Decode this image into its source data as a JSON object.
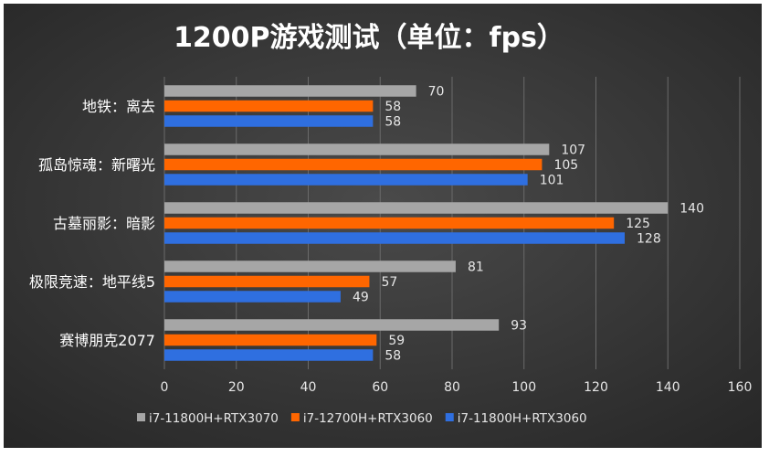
{
  "chart_data": {
    "type": "bar",
    "orientation": "horizontal",
    "title": "1200P游戏测试（单位：fps）",
    "categories": [
      "地铁：离去",
      "孤岛惊魂：新曙光",
      "古墓丽影：暗影",
      "极限竞速：地平线5",
      "赛博朋克2077"
    ],
    "series": [
      {
        "name": "i7-11800H+RTX3070",
        "color": "#a6a6a6",
        "values": [
          70,
          107,
          140,
          81,
          93
        ]
      },
      {
        "name": "i7-12700H+RTX3060",
        "color": "#ff6600",
        "values": [
          58,
          105,
          125,
          57,
          59
        ]
      },
      {
        "name": "i7-11800H+RTX3060",
        "color": "#2f6fe0",
        "values": [
          58,
          101,
          128,
          49,
          58
        ]
      }
    ],
    "xlim": [
      0,
      160
    ],
    "xticks": [
      0,
      20,
      40,
      60,
      80,
      100,
      120,
      140,
      160
    ],
    "grid": true,
    "legend": "bottom",
    "background": "#3c3c3c",
    "text_color": "#e6e6e6",
    "grid_color": "#6a6a6a"
  }
}
